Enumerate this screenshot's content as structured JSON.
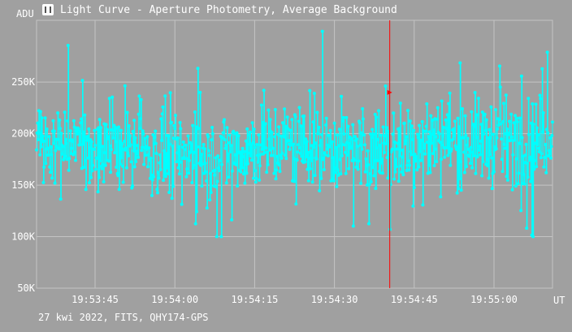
{
  "title": "Light Curve - Aperture Photometry, Average Background",
  "icon": "light-curve-app-icon",
  "footer": "27 kwi 2022, FITS, QHY174-GPS",
  "colors": {
    "background": "#a0a0a0",
    "grid": "#c4c4c4",
    "series": "#00ffff",
    "cursor": "#ff0000",
    "text": "#ffffff"
  },
  "chart_data": {
    "type": "scatter",
    "title": "Light Curve - Aperture Photometry, Average Background",
    "xlabel": "UT",
    "ylabel": "ADU",
    "x_ticks": [
      "19:53:45",
      "19:54:00",
      "19:54:15",
      "19:54:30",
      "19:54:45",
      "19:55:00"
    ],
    "y_ticks": [
      "50K",
      "100K",
      "150K",
      "200K",
      "250K"
    ],
    "xlim": [
      "19:53:34",
      "19:55:11"
    ],
    "ylim": [
      50000,
      310000
    ],
    "grid": true,
    "cursor_time": "19:54:40.4",
    "cursor_marker_value": 240000,
    "series": [
      {
        "style": "points joined by vertical lines",
        "seconds_from_start": [
          0,
          97
        ],
        "mean_adu_profile": [
          {
            "t": "19:53:34",
            "adu": 190000
          },
          {
            "t": "19:54:05",
            "adu": 178000
          },
          {
            "t": "19:54:20",
            "adu": 190000
          },
          {
            "t": "19:54:40",
            "adu": 183000
          },
          {
            "t": "19:54:50",
            "adu": 195000
          },
          {
            "t": "19:55:00",
            "adu": 192000
          },
          {
            "t": "19:55:11",
            "adu": 195000
          }
        ],
        "scatter_range_adu": [
          100000,
          300000
        ],
        "point_count": 900
      }
    ]
  }
}
